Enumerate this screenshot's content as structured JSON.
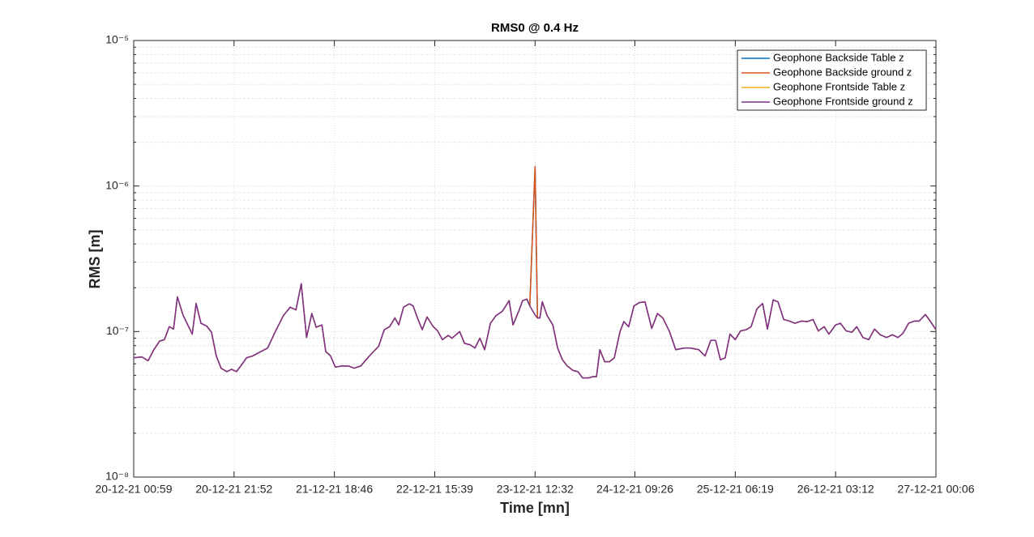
{
  "chart_data": {
    "type": "line",
    "title": "RMS0 @ 0.4 Hz",
    "xlabel": "Time [mn]",
    "ylabel": "RMS [m]",
    "log_y": true,
    "grid": true,
    "minor_grid": true,
    "legend": "northeast",
    "xlim": [
      0,
      167.1
    ],
    "ylim": [
      1e-08,
      1e-05
    ],
    "xticks": [
      {
        "value": 0,
        "label": "20-12-21 00:59"
      },
      {
        "value": 20.9,
        "label": "20-12-21 21:52"
      },
      {
        "value": 41.8,
        "label": "21-12-21 18:46"
      },
      {
        "value": 62.7,
        "label": "22-12-21 15:39"
      },
      {
        "value": 83.6,
        "label": "23-12-21 12:32"
      },
      {
        "value": 104.4,
        "label": "24-12-21 09:26"
      },
      {
        "value": 125.3,
        "label": "25-12-21 06:19"
      },
      {
        "value": 146.2,
        "label": "26-12-21 03:12"
      },
      {
        "value": 167.1,
        "label": "27-12-21 00:06"
      }
    ],
    "yticks": [
      {
        "value": 1e-08,
        "label": "10⁻⁸"
      },
      {
        "value": 1e-07,
        "label": "10⁻⁷"
      },
      {
        "value": 1e-06,
        "label": "10⁻⁶"
      },
      {
        "value": 1e-05,
        "label": "10⁻⁵"
      }
    ],
    "x": [
      0,
      1.7,
      3.0,
      4.2,
      5.4,
      6.4,
      7.4,
      8.3,
      9.1,
      10.3,
      12.2,
      13.0,
      14.0,
      15.2,
      16.2,
      17.2,
      18.2,
      19.4,
      20.4,
      21.4,
      22.3,
      23.5,
      24.8,
      26.2,
      27.9,
      29.5,
      31.2,
      32.6,
      33.8,
      34.9,
      36.0,
      37.1,
      38.0,
      39.2,
      40.0,
      41.0,
      42.0,
      43.4,
      44.7,
      45.9,
      47.3,
      48.4,
      49.8,
      51.0,
      52.2,
      53.3,
      54.4,
      55.2,
      56.2,
      57.4,
      58.2,
      59.1,
      60.1,
      61.1,
      62.3,
      63.3,
      64.3,
      65.5,
      66.3,
      67.9,
      68.9,
      70.1,
      71.1,
      72.1,
      73.1,
      74.3,
      75.5,
      76.8,
      78.2,
      79.0,
      80.2,
      81.0,
      81.9,
      82.5,
      83.6,
      84.1,
      84.6,
      85.1,
      86.1,
      87.3,
      88.3,
      89.3,
      90.3,
      91.5,
      92.5,
      93.5,
      94.7,
      95.7,
      96.4,
      97.1,
      98.1,
      99.1,
      100.1,
      101.3,
      102.1,
      103.1,
      104.2,
      105.3,
      106.5,
      107.9,
      109.1,
      110.2,
      111.6,
      112.9,
      114.6,
      116.0,
      117.7,
      119.0,
      120.2,
      121.2,
      122.2,
      123.2,
      124.2,
      125.3,
      126.4,
      127.6,
      128.6,
      129.8,
      131.0,
      132.0,
      133.2,
      134.2,
      135.4,
      136.6,
      137.7,
      139.1,
      140.3,
      141.5,
      142.6,
      143.8,
      144.8,
      146.2,
      147.2,
      148.4,
      149.6,
      150.6,
      151.9,
      153.1,
      154.3,
      155.5,
      156.8,
      158.0,
      159.2,
      160.2,
      161.4,
      162.6,
      163.6,
      164.9,
      165.9,
      167.1
    ],
    "series": [
      {
        "name": "Geophone Backside Table z",
        "color": "#0072BD",
        "values": [
          6.6e-08,
          6.7e-08,
          6.3e-08,
          7.5e-08,
          8.6e-08,
          8.8e-08,
          1.08e-07,
          1.04e-07,
          1.73e-07,
          1.29e-07,
          9.6e-08,
          1.56e-07,
          1.14e-07,
          1.09e-07,
          9.9e-08,
          6.8e-08,
          5.6e-08,
          5.3e-08,
          5.5e-08,
          5.3e-08,
          5.8e-08,
          6.6e-08,
          6.8e-08,
          7.2e-08,
          7.7e-08,
          1e-07,
          1.29e-07,
          1.47e-07,
          1.41e-07,
          2.13e-07,
          9.1e-08,
          1.33e-07,
          1.07e-07,
          1.11e-07,
          7.3e-08,
          6.8e-08,
          5.7e-08,
          5.8e-08,
          5.8e-08,
          5.6e-08,
          5.8e-08,
          6.4e-08,
          7.2e-08,
          7.9e-08,
          1.03e-07,
          1.08e-07,
          1.24e-07,
          1.11e-07,
          1.47e-07,
          1.55e-07,
          1.5e-07,
          1.24e-07,
          1.03e-07,
          1.26e-07,
          1.09e-07,
          1.01e-07,
          8.8e-08,
          9.4e-08,
          9e-08,
          1e-07,
          8.3e-08,
          8.1e-08,
          7.7e-08,
          9e-08,
          7.5e-08,
          1.14e-07,
          1.29e-07,
          1.38e-07,
          1.63e-07,
          1.11e-07,
          1.38e-07,
          1.63e-07,
          1.67e-07,
          1.5e-07,
          1.36e-06,
          1.24e-07,
          1.24e-07,
          1.6e-07,
          1.29e-07,
          1.11e-07,
          7.7e-08,
          6.4e-08,
          5.8e-08,
          5.4e-08,
          5.3e-08,
          4.8e-08,
          4.8e-08,
          4.9e-08,
          4.9e-08,
          7.5e-08,
          6.2e-08,
          6.2e-08,
          6.6e-08,
          1e-07,
          1.17e-07,
          1.08e-07,
          1.5e-07,
          1.58e-07,
          1.6e-07,
          1.05e-07,
          1.33e-07,
          1.24e-07,
          1e-07,
          7.5e-08,
          7.7e-08,
          7.7e-08,
          7.5e-08,
          6.8e-08,
          8.7e-08,
          8.7e-08,
          6.4e-08,
          6.6e-08,
          9.6e-08,
          8.8e-08,
          1.01e-07,
          1.03e-07,
          1.08e-07,
          1.43e-07,
          1.56e-07,
          1.04e-07,
          1.65e-07,
          1.6e-07,
          1.21e-07,
          1.18e-07,
          1.14e-07,
          1.18e-07,
          1.17e-07,
          1.21e-07,
          1.01e-07,
          1.08e-07,
          9.6e-08,
          1.11e-07,
          1.14e-07,
          1.01e-07,
          9.9e-08,
          1.08e-07,
          9.1e-08,
          8.8e-08,
          1.04e-07,
          9.5e-08,
          9.1e-08,
          9.5e-08,
          9.1e-08,
          9.7e-08,
          1.14e-07,
          1.18e-07,
          1.18e-07,
          1.31e-07,
          1.18e-07,
          1.03e-07
        ]
      },
      {
        "name": "Geophone Backside ground z",
        "color": "#D95319",
        "values": [
          6.6e-08,
          6.7e-08,
          6.3e-08,
          7.5e-08,
          8.6e-08,
          8.8e-08,
          1.08e-07,
          1.04e-07,
          1.73e-07,
          1.29e-07,
          9.6e-08,
          1.56e-07,
          1.14e-07,
          1.09e-07,
          9.9e-08,
          6.8e-08,
          5.6e-08,
          5.3e-08,
          5.5e-08,
          5.3e-08,
          5.8e-08,
          6.6e-08,
          6.8e-08,
          7.2e-08,
          7.7e-08,
          1e-07,
          1.29e-07,
          1.47e-07,
          1.41e-07,
          2.13e-07,
          9.1e-08,
          1.33e-07,
          1.07e-07,
          1.11e-07,
          7.3e-08,
          6.8e-08,
          5.7e-08,
          5.8e-08,
          5.8e-08,
          5.6e-08,
          5.8e-08,
          6.4e-08,
          7.2e-08,
          7.9e-08,
          1.03e-07,
          1.08e-07,
          1.24e-07,
          1.11e-07,
          1.47e-07,
          1.55e-07,
          1.5e-07,
          1.24e-07,
          1.03e-07,
          1.26e-07,
          1.09e-07,
          1.01e-07,
          8.8e-08,
          9.4e-08,
          9e-08,
          1e-07,
          8.3e-08,
          8.1e-08,
          7.7e-08,
          9e-08,
          7.5e-08,
          1.14e-07,
          1.29e-07,
          1.38e-07,
          1.63e-07,
          1.11e-07,
          1.38e-07,
          1.63e-07,
          1.67e-07,
          1.5e-07,
          1.36e-06,
          1.24e-07,
          1.24e-07,
          1.6e-07,
          1.29e-07,
          1.11e-07,
          7.7e-08,
          6.4e-08,
          5.8e-08,
          5.4e-08,
          5.3e-08,
          4.8e-08,
          4.8e-08,
          4.9e-08,
          4.9e-08,
          7.5e-08,
          6.2e-08,
          6.2e-08,
          6.6e-08,
          1e-07,
          1.17e-07,
          1.08e-07,
          1.5e-07,
          1.58e-07,
          1.6e-07,
          1.05e-07,
          1.33e-07,
          1.24e-07,
          1e-07,
          7.5e-08,
          7.7e-08,
          7.7e-08,
          7.5e-08,
          6.8e-08,
          8.7e-08,
          8.7e-08,
          6.4e-08,
          6.6e-08,
          9.6e-08,
          8.8e-08,
          1.01e-07,
          1.03e-07,
          1.08e-07,
          1.43e-07,
          1.56e-07,
          1.04e-07,
          1.65e-07,
          1.6e-07,
          1.21e-07,
          1.18e-07,
          1.14e-07,
          1.18e-07,
          1.17e-07,
          1.21e-07,
          1.01e-07,
          1.08e-07,
          9.6e-08,
          1.11e-07,
          1.14e-07,
          1.01e-07,
          9.9e-08,
          1.08e-07,
          9.1e-08,
          8.8e-08,
          1.04e-07,
          9.5e-08,
          9.1e-08,
          9.5e-08,
          9.1e-08,
          9.7e-08,
          1.14e-07,
          1.18e-07,
          1.18e-07,
          1.31e-07,
          1.18e-07,
          1.03e-07
        ]
      },
      {
        "name": "Geophone Frontside Table z",
        "color": "#EDB120",
        "values": [
          6.6e-08,
          6.7e-08,
          6.3e-08,
          7.5e-08,
          8.6e-08,
          8.8e-08,
          1.08e-07,
          1.04e-07,
          1.73e-07,
          1.29e-07,
          9.6e-08,
          1.56e-07,
          1.14e-07,
          1.09e-07,
          9.9e-08,
          6.8e-08,
          5.6e-08,
          5.3e-08,
          5.5e-08,
          5.3e-08,
          5.8e-08,
          6.6e-08,
          6.8e-08,
          7.2e-08,
          7.7e-08,
          1e-07,
          1.29e-07,
          1.47e-07,
          1.41e-07,
          2.13e-07,
          9.1e-08,
          1.33e-07,
          1.07e-07,
          1.11e-07,
          7.3e-08,
          6.8e-08,
          5.7e-08,
          5.8e-08,
          5.8e-08,
          5.6e-08,
          5.8e-08,
          6.4e-08,
          7.2e-08,
          7.9e-08,
          1.03e-07,
          1.08e-07,
          1.24e-07,
          1.11e-07,
          1.47e-07,
          1.55e-07,
          1.5e-07,
          1.24e-07,
          1.03e-07,
          1.26e-07,
          1.09e-07,
          1.01e-07,
          8.8e-08,
          9.4e-08,
          9e-08,
          1e-07,
          8.3e-08,
          8.1e-08,
          7.7e-08,
          9e-08,
          7.5e-08,
          1.14e-07,
          1.29e-07,
          1.38e-07,
          1.63e-07,
          1.11e-07,
          1.38e-07,
          1.63e-07,
          1.67e-07,
          1.5e-07,
          1.3e-07,
          1.24e-07,
          1.24e-07,
          1.6e-07,
          1.29e-07,
          1.11e-07,
          7.7e-08,
          6.4e-08,
          5.8e-08,
          5.4e-08,
          5.3e-08,
          4.8e-08,
          4.8e-08,
          4.9e-08,
          4.9e-08,
          7.5e-08,
          6.2e-08,
          6.2e-08,
          6.6e-08,
          1e-07,
          1.17e-07,
          1.08e-07,
          1.5e-07,
          1.58e-07,
          1.6e-07,
          1.05e-07,
          1.33e-07,
          1.24e-07,
          1e-07,
          7.5e-08,
          7.7e-08,
          7.7e-08,
          7.5e-08,
          6.8e-08,
          8.7e-08,
          8.7e-08,
          6.4e-08,
          6.6e-08,
          9.6e-08,
          8.8e-08,
          1.01e-07,
          1.03e-07,
          1.08e-07,
          1.43e-07,
          1.56e-07,
          1.04e-07,
          1.65e-07,
          1.6e-07,
          1.21e-07,
          1.18e-07,
          1.14e-07,
          1.18e-07,
          1.17e-07,
          1.21e-07,
          1.01e-07,
          1.08e-07,
          9.6e-08,
          1.11e-07,
          1.14e-07,
          1.01e-07,
          9.9e-08,
          1.08e-07,
          9.1e-08,
          8.8e-08,
          1.04e-07,
          9.5e-08,
          9.1e-08,
          9.5e-08,
          9.1e-08,
          9.7e-08,
          1.14e-07,
          1.18e-07,
          1.18e-07,
          1.31e-07,
          1.18e-07,
          1.03e-07
        ]
      },
      {
        "name": "Geophone Frontside ground z",
        "color": "#7E2F8E",
        "values": [
          6.6e-08,
          6.7e-08,
          6.3e-08,
          7.5e-08,
          8.6e-08,
          8.8e-08,
          1.08e-07,
          1.04e-07,
          1.73e-07,
          1.29e-07,
          9.6e-08,
          1.56e-07,
          1.14e-07,
          1.09e-07,
          9.9e-08,
          6.8e-08,
          5.6e-08,
          5.3e-08,
          5.5e-08,
          5.3e-08,
          5.8e-08,
          6.6e-08,
          6.8e-08,
          7.2e-08,
          7.7e-08,
          1e-07,
          1.29e-07,
          1.47e-07,
          1.41e-07,
          2.13e-07,
          9.1e-08,
          1.33e-07,
          1.07e-07,
          1.11e-07,
          7.3e-08,
          6.8e-08,
          5.7e-08,
          5.8e-08,
          5.8e-08,
          5.6e-08,
          5.8e-08,
          6.4e-08,
          7.2e-08,
          7.9e-08,
          1.03e-07,
          1.08e-07,
          1.24e-07,
          1.11e-07,
          1.47e-07,
          1.55e-07,
          1.5e-07,
          1.24e-07,
          1.03e-07,
          1.26e-07,
          1.09e-07,
          1.01e-07,
          8.8e-08,
          9.4e-08,
          9e-08,
          1e-07,
          8.3e-08,
          8.1e-08,
          7.7e-08,
          9e-08,
          7.5e-08,
          1.14e-07,
          1.29e-07,
          1.38e-07,
          1.63e-07,
          1.11e-07,
          1.38e-07,
          1.63e-07,
          1.67e-07,
          1.5e-07,
          1.3e-07,
          1.24e-07,
          1.24e-07,
          1.6e-07,
          1.29e-07,
          1.11e-07,
          7.7e-08,
          6.4e-08,
          5.8e-08,
          5.4e-08,
          5.3e-08,
          4.8e-08,
          4.8e-08,
          4.9e-08,
          4.9e-08,
          7.5e-08,
          6.2e-08,
          6.2e-08,
          6.6e-08,
          1e-07,
          1.17e-07,
          1.08e-07,
          1.5e-07,
          1.58e-07,
          1.6e-07,
          1.05e-07,
          1.33e-07,
          1.24e-07,
          1e-07,
          7.5e-08,
          7.7e-08,
          7.7e-08,
          7.5e-08,
          6.8e-08,
          8.7e-08,
          8.7e-08,
          6.4e-08,
          6.6e-08,
          9.6e-08,
          8.8e-08,
          1.01e-07,
          1.03e-07,
          1.08e-07,
          1.43e-07,
          1.56e-07,
          1.04e-07,
          1.65e-07,
          1.6e-07,
          1.21e-07,
          1.18e-07,
          1.14e-07,
          1.18e-07,
          1.17e-07,
          1.21e-07,
          1.01e-07,
          1.08e-07,
          9.6e-08,
          1.11e-07,
          1.14e-07,
          1.01e-07,
          9.9e-08,
          1.08e-07,
          9.1e-08,
          8.8e-08,
          1.04e-07,
          9.5e-08,
          9.1e-08,
          9.5e-08,
          9.1e-08,
          9.7e-08,
          1.14e-07,
          1.18e-07,
          1.18e-07,
          1.31e-07,
          1.18e-07,
          1.03e-07
        ]
      }
    ]
  }
}
